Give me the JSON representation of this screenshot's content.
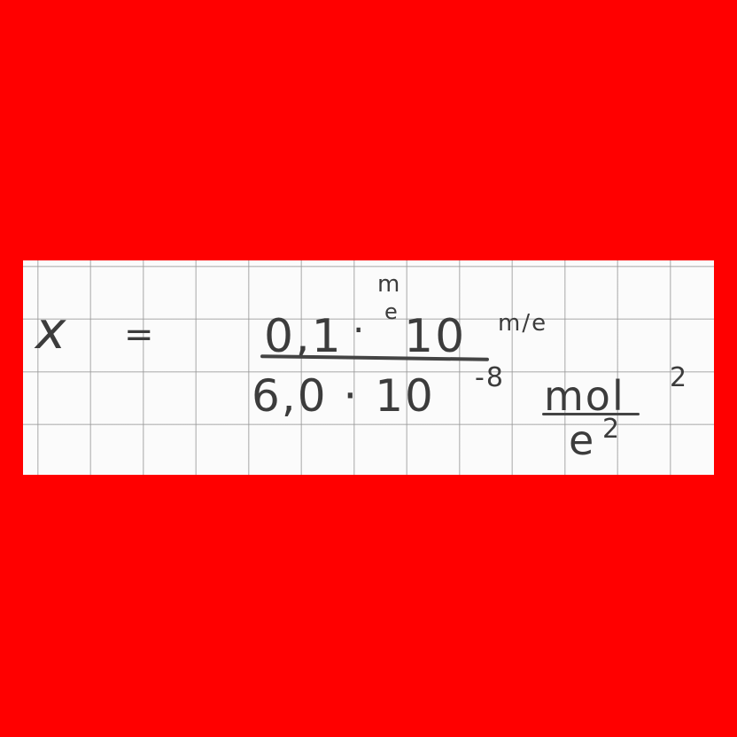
{
  "equation": {
    "lhs": "x",
    "equals": "=",
    "numerator": {
      "coef": "0,1",
      "dot": "·",
      "unit_top": "m",
      "unit_bottom": "e",
      "value": "10",
      "unit2": "m/e"
    },
    "denominator": {
      "value": "6,0 · 10",
      "exponent": "-8",
      "unit_num": "mol",
      "unit_num_exp": "2",
      "unit_den": "e",
      "unit_den_exp": "2"
    }
  }
}
